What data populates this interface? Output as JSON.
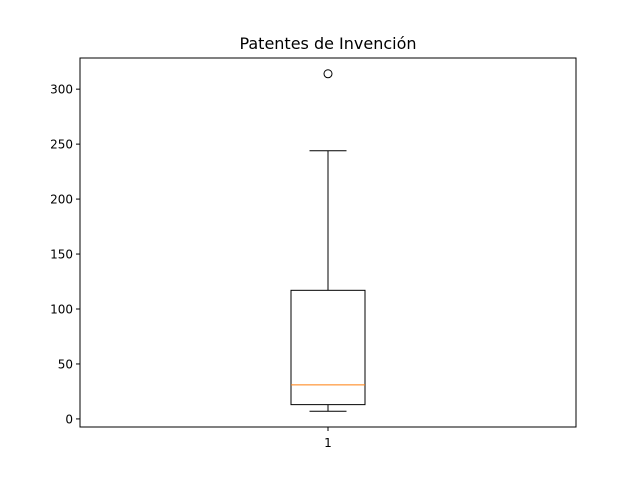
{
  "chart_data": {
    "type": "box",
    "title": "Patentes de Invención",
    "xlabel": "",
    "ylabel": "",
    "categories": [
      "1"
    ],
    "boxes": [
      {
        "label": "1",
        "whisker_low": 7,
        "q1": 13,
        "median": 31,
        "q3": 117,
        "whisker_high": 244,
        "outliers": [
          314
        ]
      }
    ],
    "y_ticks": [
      0,
      50,
      100,
      150,
      200,
      250,
      300
    ],
    "y_tick_labels": [
      "0",
      "50",
      "100",
      "150",
      "200",
      "250",
      "300"
    ],
    "ylim": [
      -7.35,
      328.35
    ],
    "grid": false,
    "colors": {
      "box": "#000000",
      "median": "#ff7f0e",
      "background": "#ffffff"
    }
  }
}
